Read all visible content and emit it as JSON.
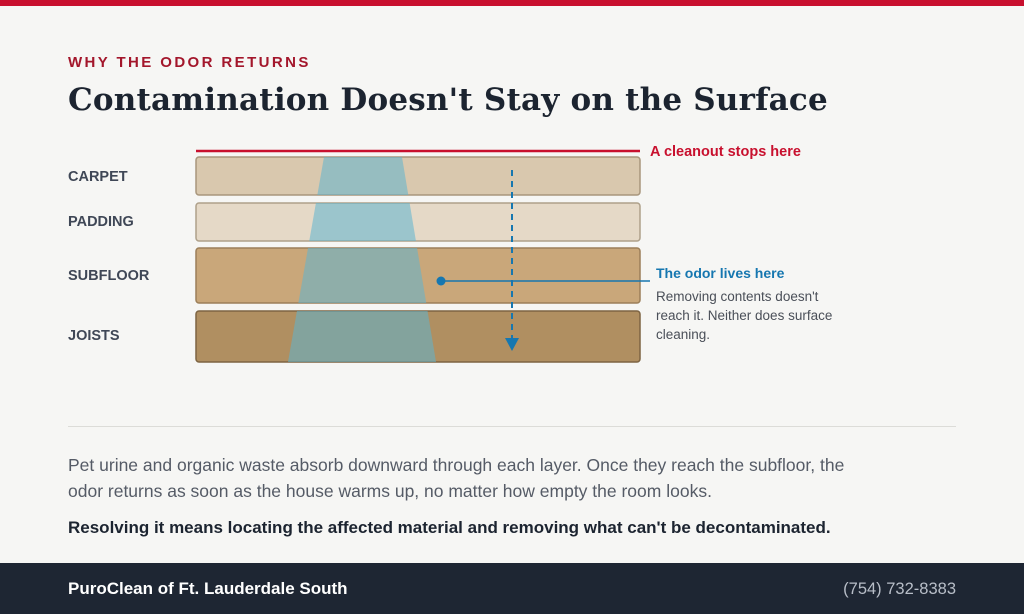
{
  "header": {
    "eyebrow": "WHY THE ODOR RETURNS",
    "title": "Contamination Doesn't Stay on the Surface"
  },
  "diagram": {
    "layers": [
      {
        "label": "CARPET",
        "color": "#d9c8ae",
        "stroke": "#a8967c"
      },
      {
        "label": "PADDING",
        "color": "#e5d9c7",
        "stroke": "#aea08a"
      },
      {
        "label": "SUBFLOOR",
        "color": "#c9a77a",
        "stroke": "#9c7f59"
      },
      {
        "label": "JOISTS",
        "color": "#b08f61",
        "stroke": "#7d6442"
      }
    ],
    "cleanout_callout": "A cleanout stops here",
    "odor_callout_title": "The odor lives here",
    "odor_callout_text": "Removing contents doesn't reach it. Neither does surface cleaning.",
    "colors": {
      "red": "#c8102e",
      "blue": "#1677b0",
      "stain": "#5fb4cf"
    }
  },
  "body": {
    "paragraph": "Pet urine and organic waste absorb downward through each layer. Once they reach the subfloor, the odor returns as soon as the house warms up, no matter how empty the room looks.",
    "emphasis": "Resolving it means locating the affected material and removing what can't be decontaminated."
  },
  "footer": {
    "company": "PuroClean of Ft. Lauderdale South",
    "phone": "(754) 732-8383"
  }
}
